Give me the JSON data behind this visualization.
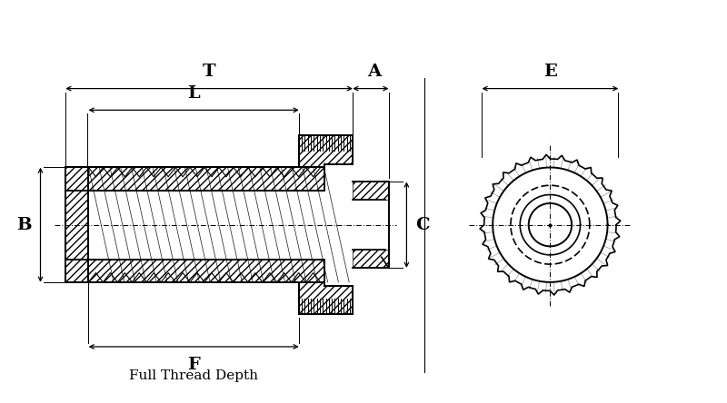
{
  "bg_color": "#ffffff",
  "line_color": "#000000",
  "hatch_color": "#000000",
  "dim_color": "#000000",
  "title_text": "Full Thread Depth",
  "labels": [
    "T",
    "L",
    "A",
    "B",
    "C",
    "E",
    "F"
  ],
  "figsize": [
    8.0,
    4.44
  ],
  "dpi": 100
}
